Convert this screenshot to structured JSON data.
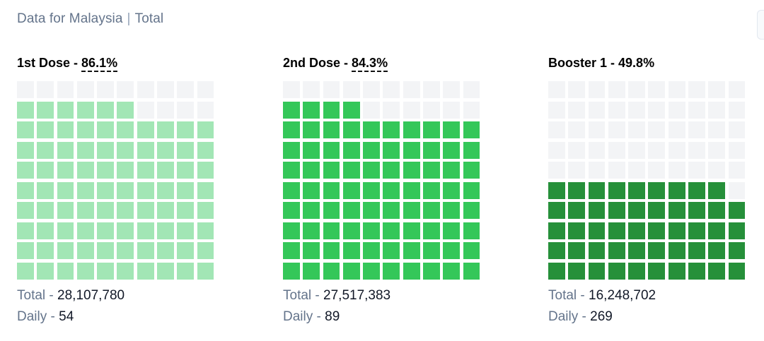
{
  "header": {
    "location": "Data for Malaysia",
    "filter": "Total"
  },
  "chart_data": [
    {
      "type": "waffle",
      "title_label": "1st Dose",
      "title_percent": "86.1%",
      "percent": 86.1,
      "color": "#a2e6b5",
      "empty_color": "#f3f4f6",
      "total_label": "Total",
      "total_value": "28,107,780",
      "daily_label": "Daily",
      "daily_value": "54"
    },
    {
      "type": "waffle",
      "title_label": "2nd Dose",
      "title_percent": "84.3%",
      "percent": 84.3,
      "color": "#34c759",
      "empty_color": "#f3f4f6",
      "total_label": "Total",
      "total_value": "27,517,383",
      "daily_label": "Daily",
      "daily_value": "89"
    },
    {
      "type": "waffle",
      "title_label": "Booster 1",
      "title_percent": "49.8%",
      "percent": 49.8,
      "color": "#26903a",
      "empty_color": "#f3f4f6",
      "total_label": "Total",
      "total_value": "16,248,702",
      "daily_label": "Daily",
      "daily_value": "269"
    }
  ]
}
